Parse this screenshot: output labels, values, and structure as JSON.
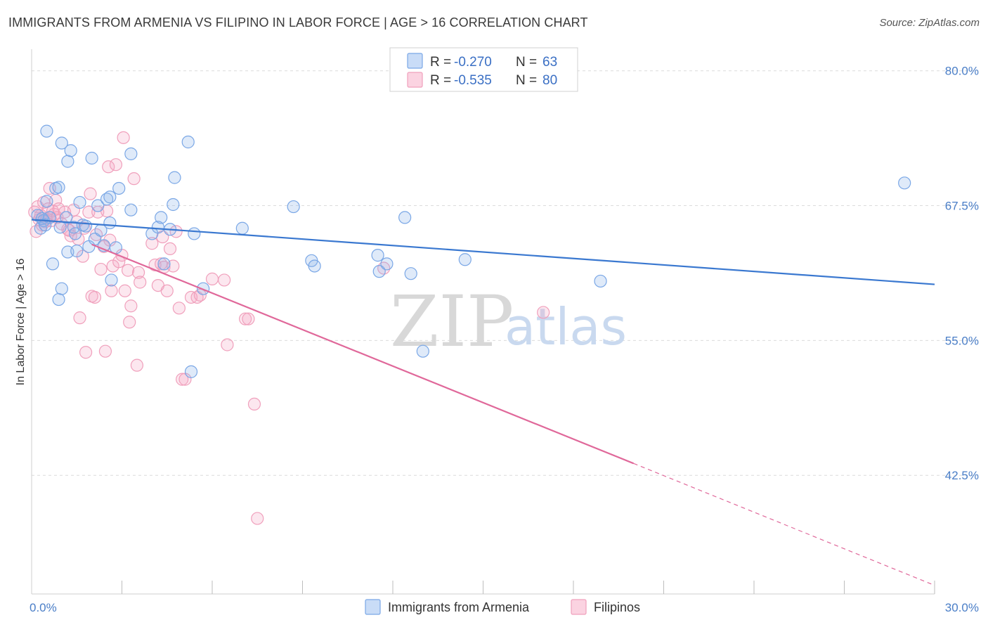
{
  "title": "IMMIGRANTS FROM ARMENIA VS FILIPINO IN LABOR FORCE | AGE > 16 CORRELATION CHART",
  "source": "Source: ZipAtlas.com",
  "watermark": {
    "zip": "ZIP",
    "atlas": "atlas"
  },
  "colors": {
    "blue": "#7aa7e6",
    "blue_line": "#3a78d0",
    "pink": "#f0a0bc",
    "pink_line": "#e0689a"
  },
  "chart_data": {
    "type": "scatter",
    "title": "IMMIGRANTS FROM ARMENIA VS FILIPINO IN LABOR FORCE | AGE > 16 CORRELATION CHART",
    "xlabel": "",
    "ylabel": "In Labor Force | Age > 16",
    "xlim": [
      0,
      30
    ],
    "ylim": [
      31.5,
      82
    ],
    "x_tick_labels": [
      {
        "value": 0,
        "label": "0.0%"
      },
      {
        "value": 30,
        "label": "30.0%"
      }
    ],
    "y_tick_labels": [
      {
        "value": 80,
        "label": "80.0%"
      },
      {
        "value": 67.5,
        "label": "67.5%"
      },
      {
        "value": 55,
        "label": "55.0%"
      },
      {
        "value": 42.5,
        "label": "42.5%"
      }
    ],
    "grid": true,
    "legend": {
      "placement": "top-center",
      "entries": [
        {
          "r_label": "R = ",
          "r_value": "-0.270",
          "n_label": "N = ",
          "n_value": "63"
        },
        {
          "r_label": "R = ",
          "r_value": "-0.535",
          "n_label": "N = ",
          "n_value": "80"
        }
      ]
    },
    "bottom_legend": [
      "Immigrants from Armenia",
      "Filipinos"
    ],
    "series": [
      {
        "name": "Immigrants from Armenia",
        "color": "#7aa7e6",
        "trend": {
          "x0": 0,
          "y0": 66.2,
          "x1": 30,
          "y1": 60.2
        },
        "points": [
          [
            0.2,
            66.6
          ],
          [
            0.3,
            65.4
          ],
          [
            0.4,
            66.1
          ],
          [
            0.5,
            67.9
          ],
          [
            0.6,
            66.4
          ],
          [
            0.7,
            62.1
          ],
          [
            0.8,
            69.1
          ],
          [
            0.9,
            58.8
          ],
          [
            0.5,
            74.4
          ],
          [
            0.9,
            69.2
          ],
          [
            0.95,
            65.5
          ],
          [
            1.0,
            59.8
          ],
          [
            1.0,
            73.3
          ],
          [
            1.15,
            66.4
          ],
          [
            1.2,
            71.6
          ],
          [
            1.2,
            63.2
          ],
          [
            1.3,
            72.6
          ],
          [
            1.4,
            65.5
          ],
          [
            1.45,
            64.9
          ],
          [
            1.5,
            63.3
          ],
          [
            1.6,
            67.8
          ],
          [
            1.7,
            65.7
          ],
          [
            1.8,
            65.6
          ],
          [
            1.9,
            63.7
          ],
          [
            2.0,
            71.9
          ],
          [
            2.1,
            64.4
          ],
          [
            2.2,
            67.5
          ],
          [
            2.3,
            65.2
          ],
          [
            2.4,
            63.8
          ],
          [
            2.5,
            68.1
          ],
          [
            2.6,
            65.9
          ],
          [
            2.65,
            60.6
          ],
          [
            2.6,
            68.3
          ],
          [
            2.8,
            63.6
          ],
          [
            2.9,
            69.1
          ],
          [
            3.3,
            72.3
          ],
          [
            3.3,
            67.1
          ],
          [
            4.0,
            64.9
          ],
          [
            4.2,
            65.5
          ],
          [
            4.3,
            66.4
          ],
          [
            4.4,
            62.1
          ],
          [
            4.6,
            65.3
          ],
          [
            4.7,
            67.6
          ],
          [
            4.75,
            70.1
          ],
          [
            5.2,
            73.4
          ],
          [
            5.3,
            52.1
          ],
          [
            5.4,
            64.9
          ],
          [
            5.7,
            59.8
          ],
          [
            7.0,
            65.4
          ],
          [
            8.7,
            67.4
          ],
          [
            9.3,
            62.4
          ],
          [
            9.4,
            61.9
          ],
          [
            11.5,
            62.9
          ],
          [
            11.55,
            61.4
          ],
          [
            11.8,
            62.1
          ],
          [
            12.4,
            66.4
          ],
          [
            12.6,
            61.2
          ],
          [
            13.0,
            54.0
          ],
          [
            14.4,
            62.5
          ],
          [
            18.9,
            60.5
          ],
          [
            29.0,
            69.6
          ],
          [
            0.35,
            66.3
          ],
          [
            0.45,
            65.7
          ]
        ]
      },
      {
        "name": "Filipinos",
        "color": "#f0a0bc",
        "trend_solid": {
          "x0": 2.0,
          "y0": 63.9,
          "x1": 20.0,
          "y1": 43.6
        },
        "trend_dashed": {
          "x0": 20.0,
          "y0": 43.6,
          "x1": 30.0,
          "y1": 32.3
        },
        "points": [
          [
            0.1,
            66.9
          ],
          [
            0.15,
            65.1
          ],
          [
            0.2,
            67.4
          ],
          [
            0.25,
            66.2
          ],
          [
            0.3,
            66.6
          ],
          [
            0.35,
            65.7
          ],
          [
            0.4,
            67.8
          ],
          [
            0.45,
            66.0
          ],
          [
            0.5,
            66.3
          ],
          [
            0.55,
            67.2
          ],
          [
            0.6,
            69.1
          ],
          [
            0.65,
            66.1
          ],
          [
            0.7,
            67.0
          ],
          [
            0.75,
            66.7
          ],
          [
            0.8,
            68.0
          ],
          [
            0.85,
            66.4
          ],
          [
            0.9,
            67.2
          ],
          [
            1.0,
            65.8
          ],
          [
            1.1,
            66.9
          ],
          [
            1.2,
            65.3
          ],
          [
            1.3,
            64.7
          ],
          [
            1.4,
            67.1
          ],
          [
            1.5,
            66.0
          ],
          [
            1.55,
            64.4
          ],
          [
            1.6,
            57.1
          ],
          [
            1.7,
            62.8
          ],
          [
            1.75,
            65.4
          ],
          [
            1.8,
            53.9
          ],
          [
            1.9,
            66.9
          ],
          [
            1.95,
            68.6
          ],
          [
            2.0,
            59.1
          ],
          [
            2.1,
            59.0
          ],
          [
            2.2,
            66.9
          ],
          [
            2.3,
            61.6
          ],
          [
            2.4,
            63.7
          ],
          [
            2.45,
            54.0
          ],
          [
            2.5,
            67.0
          ],
          [
            2.55,
            71.1
          ],
          [
            2.6,
            64.3
          ],
          [
            2.65,
            59.6
          ],
          [
            2.7,
            61.9
          ],
          [
            2.8,
            71.3
          ],
          [
            2.9,
            62.3
          ],
          [
            3.0,
            62.9
          ],
          [
            3.05,
            73.8
          ],
          [
            3.1,
            59.6
          ],
          [
            3.2,
            61.5
          ],
          [
            3.25,
            56.7
          ],
          [
            3.3,
            58.2
          ],
          [
            3.4,
            70.0
          ],
          [
            3.5,
            52.7
          ],
          [
            3.55,
            61.3
          ],
          [
            3.6,
            60.4
          ],
          [
            4.0,
            64.0
          ],
          [
            4.1,
            62.0
          ],
          [
            4.2,
            60.1
          ],
          [
            4.3,
            62.1
          ],
          [
            4.4,
            61.8
          ],
          [
            4.5,
            59.6
          ],
          [
            4.6,
            63.5
          ],
          [
            4.7,
            61.9
          ],
          [
            4.8,
            65.1
          ],
          [
            4.9,
            58.0
          ],
          [
            5.0,
            51.4
          ],
          [
            5.1,
            51.4
          ],
          [
            5.3,
            59.0
          ],
          [
            5.5,
            59.0
          ],
          [
            5.6,
            59.2
          ],
          [
            6.0,
            60.7
          ],
          [
            6.4,
            60.6
          ],
          [
            6.5,
            54.6
          ],
          [
            7.1,
            57.0
          ],
          [
            7.2,
            57.0
          ],
          [
            7.4,
            49.1
          ],
          [
            7.5,
            38.5
          ],
          [
            11.7,
            61.7
          ],
          [
            17.0,
            57.6
          ],
          [
            1.25,
            65.2
          ],
          [
            2.15,
            64.8
          ],
          [
            4.35,
            64.6
          ]
        ]
      }
    ]
  }
}
